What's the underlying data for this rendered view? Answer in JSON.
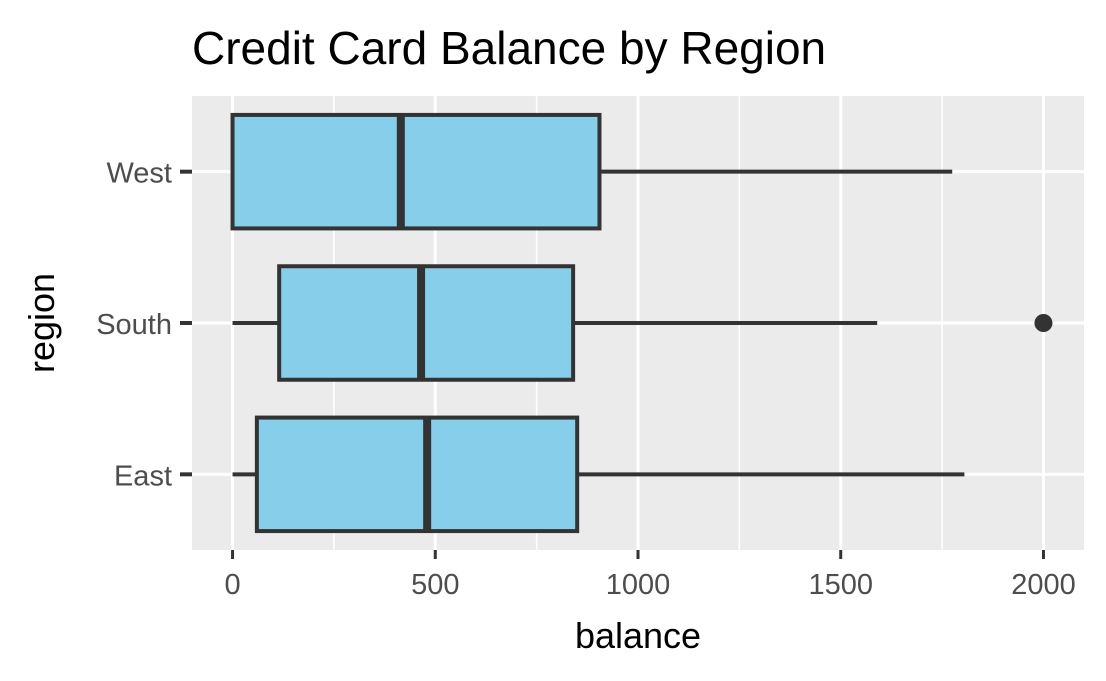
{
  "chart_data": {
    "type": "boxplot",
    "orientation": "horizontal",
    "title": "Credit Card Balance by Region",
    "xlabel": "balance",
    "ylabel": "region",
    "xlim": [
      -100,
      2100
    ],
    "x_ticks": [
      0,
      500,
      1000,
      1500,
      2000
    ],
    "x_tick_labels": [
      "0",
      "500",
      "1000",
      "1500",
      "2000"
    ],
    "categories": [
      "West",
      "South",
      "East"
    ],
    "boxes": [
      {
        "category": "West",
        "whisker_low": 0,
        "q1": 0,
        "median": 415,
        "q3": 905,
        "whisker_high": 1775,
        "outliers": []
      },
      {
        "category": "South",
        "whisker_low": 0,
        "q1": 115,
        "median": 465,
        "q3": 840,
        "whisker_high": 1590,
        "outliers": [
          2000
        ]
      },
      {
        "category": "East",
        "whisker_low": 0,
        "q1": 60,
        "median": 480,
        "q3": 850,
        "whisker_high": 1805,
        "outliers": []
      }
    ],
    "grid": true,
    "legend": "none",
    "colors": {
      "box_fill": "#87ceeb",
      "box_stroke": "#333333",
      "panel_bg": "#ebebeb",
      "grid": "#ffffff",
      "outlier": "#333333",
      "tick": "#333333"
    }
  }
}
